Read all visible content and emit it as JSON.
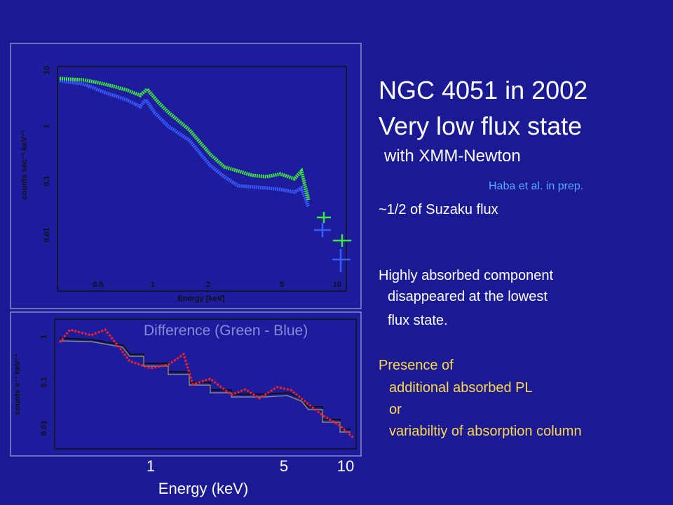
{
  "slide": {
    "title": [
      "NGC 4051 in 2002",
      "Very low flux state"
    ],
    "subtitle": "with XMM-Newton",
    "reference": "Haba et al. in prep.",
    "note": "~1/2 of Suzaku flux",
    "paragraph": [
      "Highly absorbed component",
      "disappeared at the lowest",
      "flux state."
    ],
    "highlight": [
      "Presence of",
      "additional absorbed PL",
      "or",
      "variabiltiy of absorption column"
    ]
  },
  "top_plot": {
    "y_label": "counts sec⁻¹ keV⁻¹",
    "y_ticks": [
      "10",
      "1",
      "0.1",
      "0.01"
    ],
    "x_label": "Energy [keV]",
    "x_ticks": [
      "0.5",
      "1",
      "2",
      "5",
      "10"
    ]
  },
  "bottom_plot": {
    "y_label": "counts s⁻¹ keV⁻¹",
    "y_ticks": [
      "1",
      "0.1",
      "0.01"
    ],
    "annotation": "Difference (Green - Blue)",
    "x_ticks": [
      "1",
      "5",
      "10"
    ],
    "x_label": "Energy (keV)"
  }
}
